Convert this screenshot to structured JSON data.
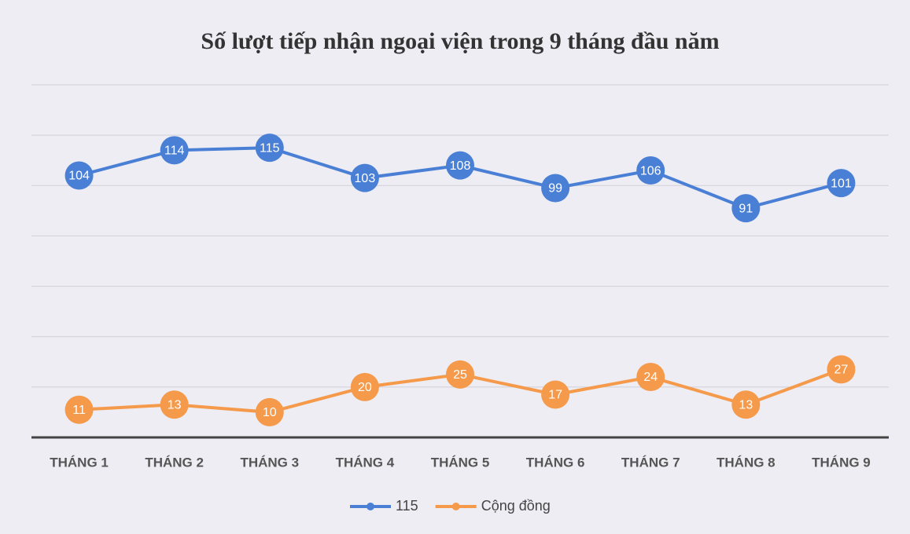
{
  "chart_data": {
    "type": "line",
    "title": "Số lượt tiếp nhận ngoại viện trong 9 tháng đầu năm",
    "categories": [
      "THÁNG 1",
      "THÁNG 2",
      "THÁNG 3",
      "THÁNG 4",
      "THÁNG 5",
      "THÁNG 6",
      "THÁNG 7",
      "THÁNG 8",
      "THÁNG 9"
    ],
    "series": [
      {
        "name": "115",
        "color": "#4a7fd6",
        "values": [
          104,
          114,
          115,
          103,
          108,
          99,
          106,
          91,
          101
        ]
      },
      {
        "name": "Cộng đồng",
        "color": "#f5994a",
        "values": [
          11,
          13,
          10,
          20,
          25,
          17,
          24,
          13,
          27
        ]
      }
    ],
    "ylim": [
      0,
      140
    ],
    "yticks": [
      0,
      20,
      40,
      60,
      80,
      100,
      120,
      140
    ],
    "grid": true,
    "legend": "bottom"
  }
}
